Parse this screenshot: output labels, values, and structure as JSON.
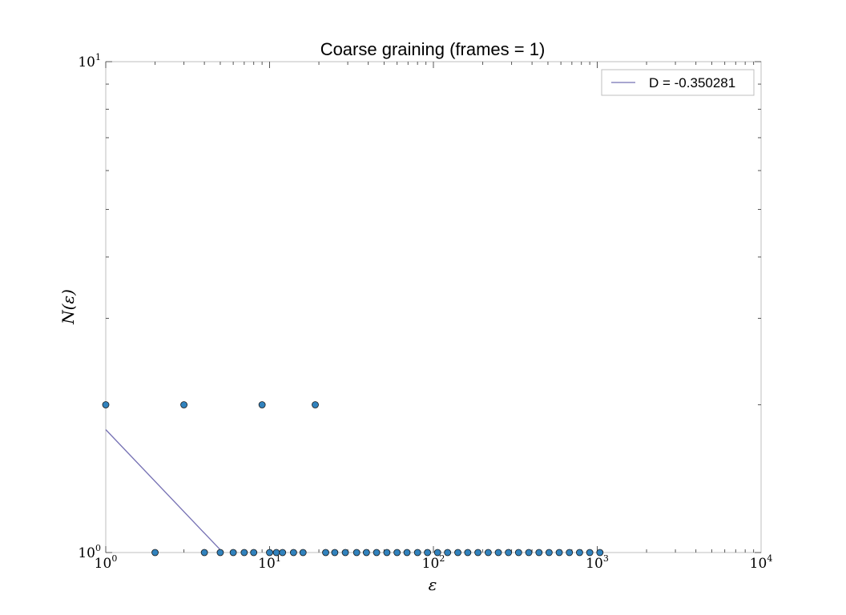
{
  "chart_data": {
    "type": "scatter",
    "title": "Coarse graining (frames = 1)",
    "xlabel": "ε",
    "ylabel": "N(ε)",
    "xscale": "log",
    "yscale": "log",
    "xlim": [
      1,
      10000
    ],
    "ylim": [
      1,
      10
    ],
    "grid": false,
    "legend_position": "top-right",
    "x_major_ticks": [
      {
        "base": "10",
        "exp": "0"
      },
      {
        "base": "10",
        "exp": "1"
      },
      {
        "base": "10",
        "exp": "2"
      },
      {
        "base": "10",
        "exp": "3"
      },
      {
        "base": "10",
        "exp": "4"
      }
    ],
    "y_major_ticks": [
      {
        "base": "10",
        "exp": "0"
      },
      {
        "base": "10",
        "exp": "1"
      }
    ],
    "series": [
      {
        "type": "scatter",
        "color": "#3182bd",
        "points": [
          [
            1,
            2
          ],
          [
            2,
            1
          ],
          [
            3,
            2
          ],
          [
            4,
            1
          ],
          [
            5,
            1
          ],
          [
            6,
            1
          ],
          [
            7,
            1
          ],
          [
            8,
            1
          ],
          [
            9,
            2
          ],
          [
            10,
            1
          ],
          [
            11,
            1
          ],
          [
            12,
            1
          ],
          [
            14,
            1
          ],
          [
            16,
            1
          ],
          [
            19,
            2
          ],
          [
            22,
            1
          ],
          [
            25,
            1
          ],
          [
            29,
            1
          ],
          [
            34,
            1
          ],
          [
            39,
            1
          ],
          [
            45,
            1
          ],
          [
            52,
            1
          ],
          [
            60,
            1
          ],
          [
            69,
            1
          ],
          [
            80,
            1
          ],
          [
            92,
            1
          ],
          [
            106,
            1
          ],
          [
            122,
            1
          ],
          [
            141,
            1
          ],
          [
            162,
            1
          ],
          [
            187,
            1
          ],
          [
            216,
            1
          ],
          [
            249,
            1
          ],
          [
            287,
            1
          ],
          [
            331,
            1
          ],
          [
            382,
            1
          ],
          [
            441,
            1
          ],
          [
            508,
            1
          ],
          [
            586,
            1
          ],
          [
            676,
            1
          ],
          [
            780,
            1
          ],
          [
            900,
            1
          ],
          [
            1038,
            1
          ]
        ]
      },
      {
        "type": "line",
        "name": "D = -0.350281",
        "color": "#7570b3",
        "slope": -0.350281,
        "x_range": [
          1,
          5.2
        ],
        "y_at_x1": 1.78
      }
    ]
  }
}
